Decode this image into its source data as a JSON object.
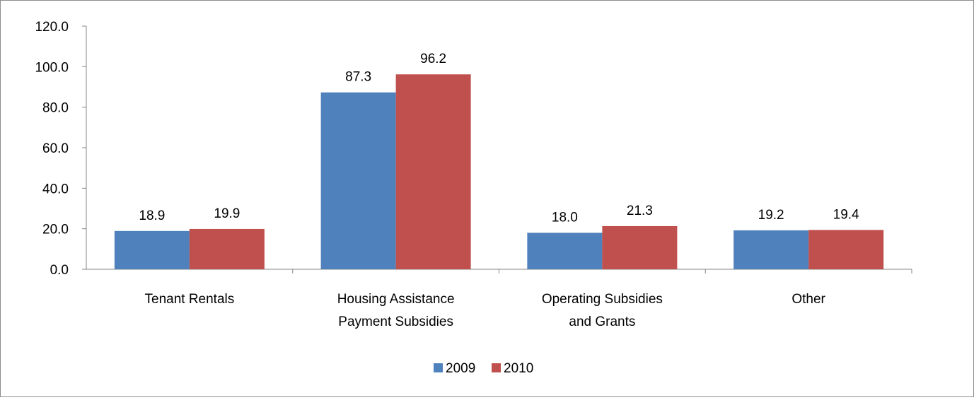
{
  "chart_data": {
    "type": "bar",
    "categories": [
      [
        "Tenant Rentals"
      ],
      [
        "Housing Assistance",
        "Payment Subsidies"
      ],
      [
        "Operating Subsidies",
        "and Grants"
      ],
      [
        "Other"
      ]
    ],
    "series": [
      {
        "name": "2009",
        "color": "#4F81BD",
        "values": [
          18.9,
          87.3,
          18.0,
          19.2
        ],
        "labels": [
          "18.9",
          "87.3",
          "18.0",
          "19.2"
        ]
      },
      {
        "name": "2010",
        "color": "#C0504D",
        "values": [
          19.9,
          96.2,
          21.3,
          19.4
        ],
        "labels": [
          "19.9",
          "96.2",
          "21.3",
          "19.4"
        ]
      }
    ],
    "ylim": [
      0,
      120
    ],
    "yticks": [
      "0.0",
      "20.0",
      "40.0",
      "60.0",
      "80.0",
      "100.0",
      "120.0"
    ],
    "grid": false,
    "legend_position": "bottom",
    "title": "",
    "xlabel": "",
    "ylabel": ""
  }
}
